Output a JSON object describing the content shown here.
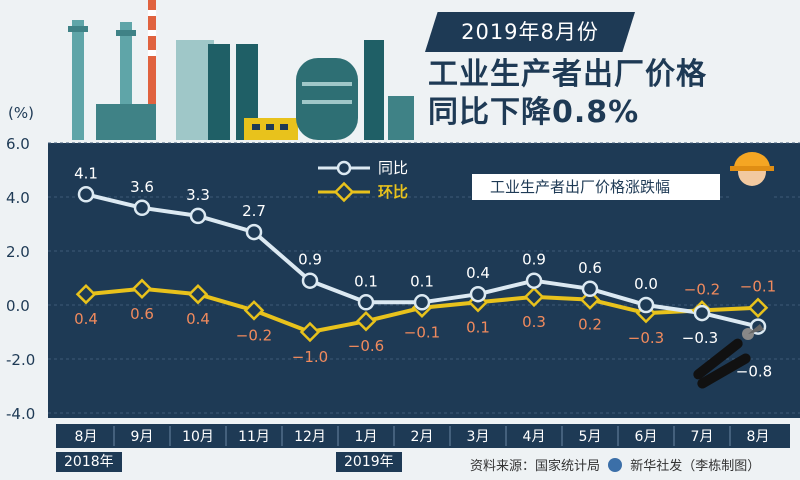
{
  "header": {
    "date_label": "2019年8月份",
    "title_line1": "工业生产者出厂价格",
    "title_line2": "同比下降0.8%"
  },
  "chart_data": {
    "type": "line",
    "title": "工业生产者出厂价格涨跌幅",
    "ylabel": "(%)",
    "ylim": [
      -4.0,
      6.0
    ],
    "yticks": [
      "6.0",
      "4.0",
      "2.0",
      "0.0",
      "-2.0",
      "-4.0"
    ],
    "categories": [
      "8月",
      "9月",
      "10月",
      "11月",
      "12月",
      "1月",
      "2月",
      "3月",
      "4月",
      "5月",
      "6月",
      "7月",
      "8月"
    ],
    "year_labels": [
      "2018年",
      "2019年"
    ],
    "series": [
      {
        "name": "同比",
        "values": [
          4.1,
          3.6,
          3.3,
          2.7,
          0.9,
          0.1,
          0.1,
          0.4,
          0.9,
          0.6,
          0.0,
          -0.3,
          -0.8
        ],
        "labels": [
          "4.1",
          "3.6",
          "3.3",
          "2.7",
          "0.9",
          "0.1",
          "0.1",
          "0.4",
          "0.9",
          "0.6",
          "0.0",
          "−0.3",
          "−0.8"
        ],
        "color": "#dce9f2"
      },
      {
        "name": "环比",
        "values": [
          0.4,
          0.6,
          0.4,
          -0.2,
          -1.0,
          -0.6,
          -0.1,
          0.1,
          0.3,
          0.2,
          -0.3,
          -0.2,
          -0.1
        ],
        "labels": [
          "0.4",
          "0.6",
          "0.4",
          "−0.2",
          "−1.0",
          "−0.6",
          "−0.1",
          "0.1",
          "0.3",
          "0.2",
          "−0.3",
          "−0.2",
          "−0.1"
        ],
        "color": "#e8c21c"
      }
    ],
    "colors": {
      "plot_bg": "#1e3a55",
      "label_orange": "#f08a5d",
      "axis_strip": "#1e3a55"
    },
    "icons": [
      "factory-illustration",
      "worker-helmet-icon",
      "pliers-illustration"
    ]
  },
  "source": "资料来源：国家统计局",
  "credit": "新华社发（李栋制图）",
  "emblem_icon": "xinhua-logo-icon"
}
